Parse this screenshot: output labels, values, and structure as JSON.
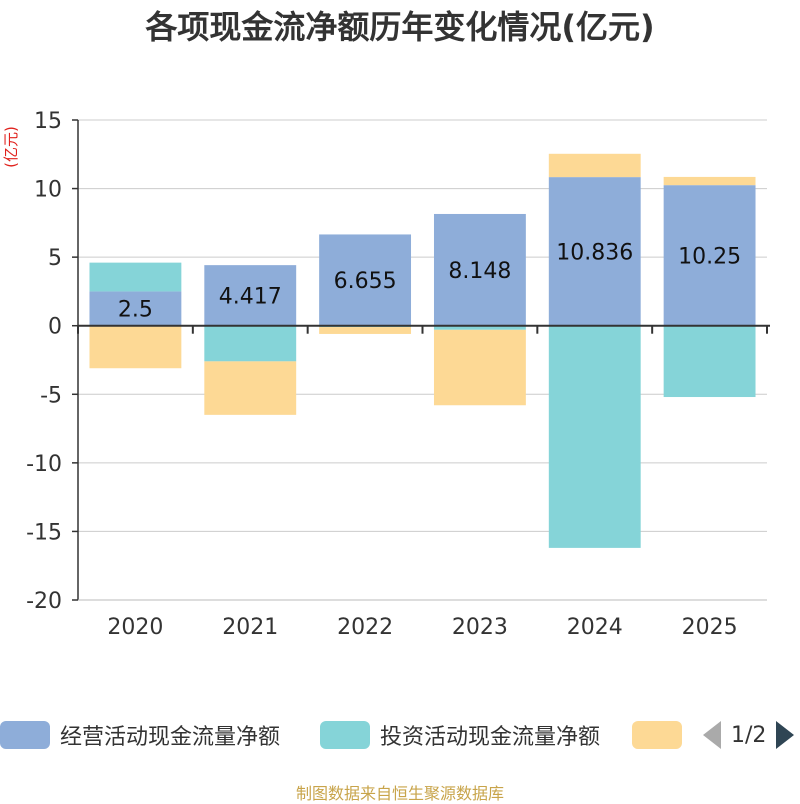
{
  "chart_data": {
    "type": "bar",
    "stacked": true,
    "title": "各项现金流净额历年变化情况(亿元)",
    "ylabel": "(亿元)",
    "xlabel": "",
    "ylim": [
      -20,
      15
    ],
    "yticks": [
      15,
      10,
      5,
      0,
      -5,
      -10,
      -15,
      -20
    ],
    "categories": [
      "2020",
      "2021",
      "2022",
      "2023",
      "2024",
      "2025"
    ],
    "series": [
      {
        "name": "经营活动现金流量净额",
        "color": "#8eadd9",
        "values": [
          2.5,
          4.417,
          6.655,
          8.148,
          10.836,
          10.25
        ],
        "labels": [
          "2.5",
          "4.417",
          "6.655",
          "8.148",
          "10.836",
          "10.25"
        ]
      },
      {
        "name": "投资活动现金流量净额",
        "color": "#85d4d8",
        "values": [
          2.1,
          -2.6,
          -0.1,
          -0.3,
          -16.2,
          -5.2
        ]
      },
      {
        "name": "",
        "color": "#fdd995",
        "values": [
          -3.1,
          -3.9,
          -0.5,
          -5.5,
          1.7,
          0.6
        ]
      }
    ],
    "legend_position": "bottom",
    "legend_page": "1/2",
    "source": "制图数据来自恒生聚源数据库"
  }
}
